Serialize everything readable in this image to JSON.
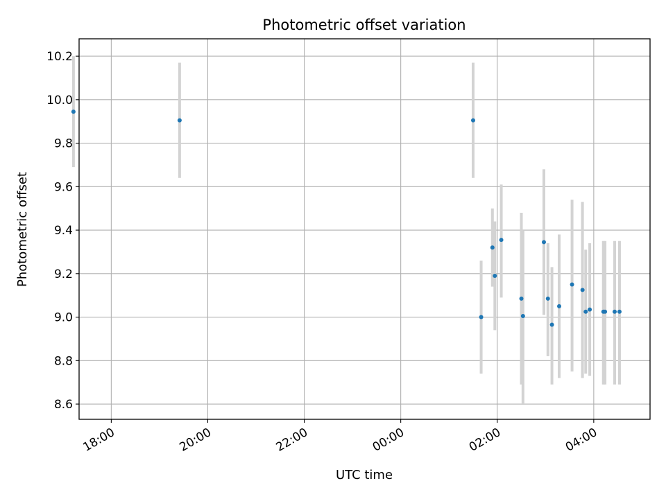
{
  "chart_data": {
    "type": "scatter",
    "title": "Photometric offset variation",
    "xlabel": "UTC time",
    "ylabel": "Photometric offset",
    "x_axis": {
      "kind": "time",
      "range": [
        "17:20",
        "05:10"
      ],
      "ticks": [
        "18:00",
        "20:00",
        "22:00",
        "00:00",
        "02:00",
        "04:00"
      ]
    },
    "y_axis": {
      "range": [
        8.53,
        10.28
      ],
      "ticks": [
        "8.6",
        "8.8",
        "9.0",
        "9.2",
        "9.4",
        "9.6",
        "9.8",
        "10.0",
        "10.2"
      ]
    },
    "grid": true,
    "marker_color": "#1f77b4",
    "errorbar_color": "#d3d3d3",
    "points": [
      {
        "x": "17:13",
        "y": 9.945,
        "yerr": [
          9.69,
          10.2
        ]
      },
      {
        "x": "19:25",
        "y": 9.905,
        "yerr": [
          9.64,
          10.17
        ]
      },
      {
        "x": "01:30",
        "y": 9.905,
        "yerr": [
          9.64,
          10.17
        ]
      },
      {
        "x": "01:40",
        "y": 9.0,
        "yerr": [
          8.74,
          9.26
        ]
      },
      {
        "x": "01:54",
        "y": 9.32,
        "yerr": [
          9.14,
          9.5
        ]
      },
      {
        "x": "01:57",
        "y": 9.19,
        "yerr": [
          8.94,
          9.44
        ]
      },
      {
        "x": "02:05",
        "y": 9.355,
        "yerr": [
          9.09,
          9.61
        ]
      },
      {
        "x": "02:30",
        "y": 9.085,
        "yerr": [
          8.69,
          9.48
        ]
      },
      {
        "x": "02:32",
        "y": 9.005,
        "yerr": [
          8.6,
          9.4
        ]
      },
      {
        "x": "02:58",
        "y": 9.345,
        "yerr": [
          9.01,
          9.68
        ]
      },
      {
        "x": "03:03",
        "y": 9.085,
        "yerr": [
          8.82,
          9.34
        ]
      },
      {
        "x": "03:08",
        "y": 8.965,
        "yerr": [
          8.69,
          9.23
        ]
      },
      {
        "x": "03:17",
        "y": 9.05,
        "yerr": [
          8.72,
          9.38
        ]
      },
      {
        "x": "03:33",
        "y": 9.15,
        "yerr": [
          8.75,
          9.54
        ]
      },
      {
        "x": "03:46",
        "y": 9.125,
        "yerr": [
          8.72,
          9.53
        ]
      },
      {
        "x": "03:50",
        "y": 9.025,
        "yerr": [
          8.74,
          9.31
        ]
      },
      {
        "x": "03:55",
        "y": 9.035,
        "yerr": [
          8.73,
          9.34
        ]
      },
      {
        "x": "04:12",
        "y": 9.025,
        "yerr": [
          8.69,
          9.35
        ]
      },
      {
        "x": "04:14",
        "y": 9.025,
        "yerr": [
          8.69,
          9.35
        ]
      },
      {
        "x": "04:26",
        "y": 9.025,
        "yerr": [
          8.69,
          9.35
        ]
      },
      {
        "x": "04:32",
        "y": 9.025,
        "yerr": [
          8.69,
          9.35
        ]
      }
    ]
  }
}
